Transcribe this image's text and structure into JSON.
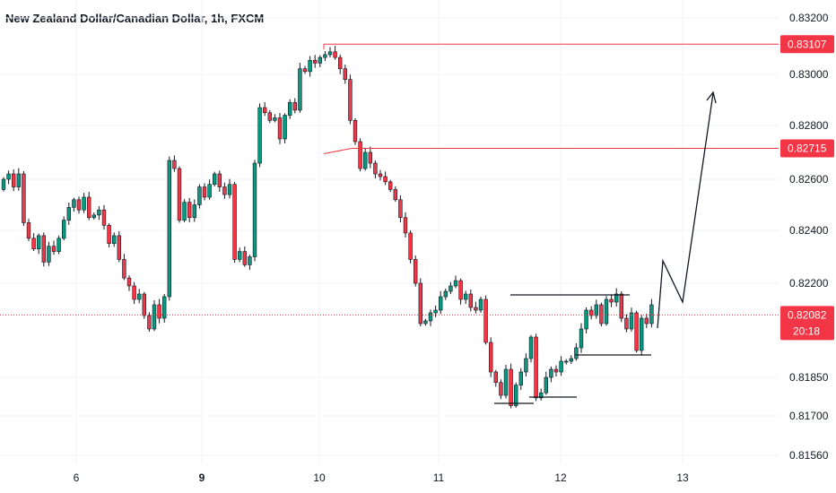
{
  "chart_data": {
    "type": "candlestick",
    "title": "New Zealand Dollar/Canadian Dollar, 1h, FXCM",
    "y_ticks": [
      "0.83200",
      "0.83000",
      "0.82800",
      "0.82600",
      "0.82400",
      "0.82200",
      "0.81850",
      "0.81700",
      "0.81560"
    ],
    "x_ticks": [
      "6",
      "9",
      "10",
      "11",
      "12",
      "13"
    ],
    "ylim": [
      0.815,
      0.8322
    ],
    "price_lines": [
      {
        "label": "0.83107",
        "value": 0.83107,
        "color": "#f23645"
      },
      {
        "label": "0.82715",
        "value": 0.82715,
        "color": "#f23645"
      }
    ],
    "current_price": {
      "label": "0.82082",
      "value": 0.82082,
      "countdown": "20:18",
      "color": "#f23645"
    },
    "colors": {
      "up": "#089981",
      "down": "#f23645",
      "axis_text": "#131722",
      "grid": "#f0f3fa"
    },
    "drawings": [
      "range-box",
      "projection-arrow"
    ]
  }
}
